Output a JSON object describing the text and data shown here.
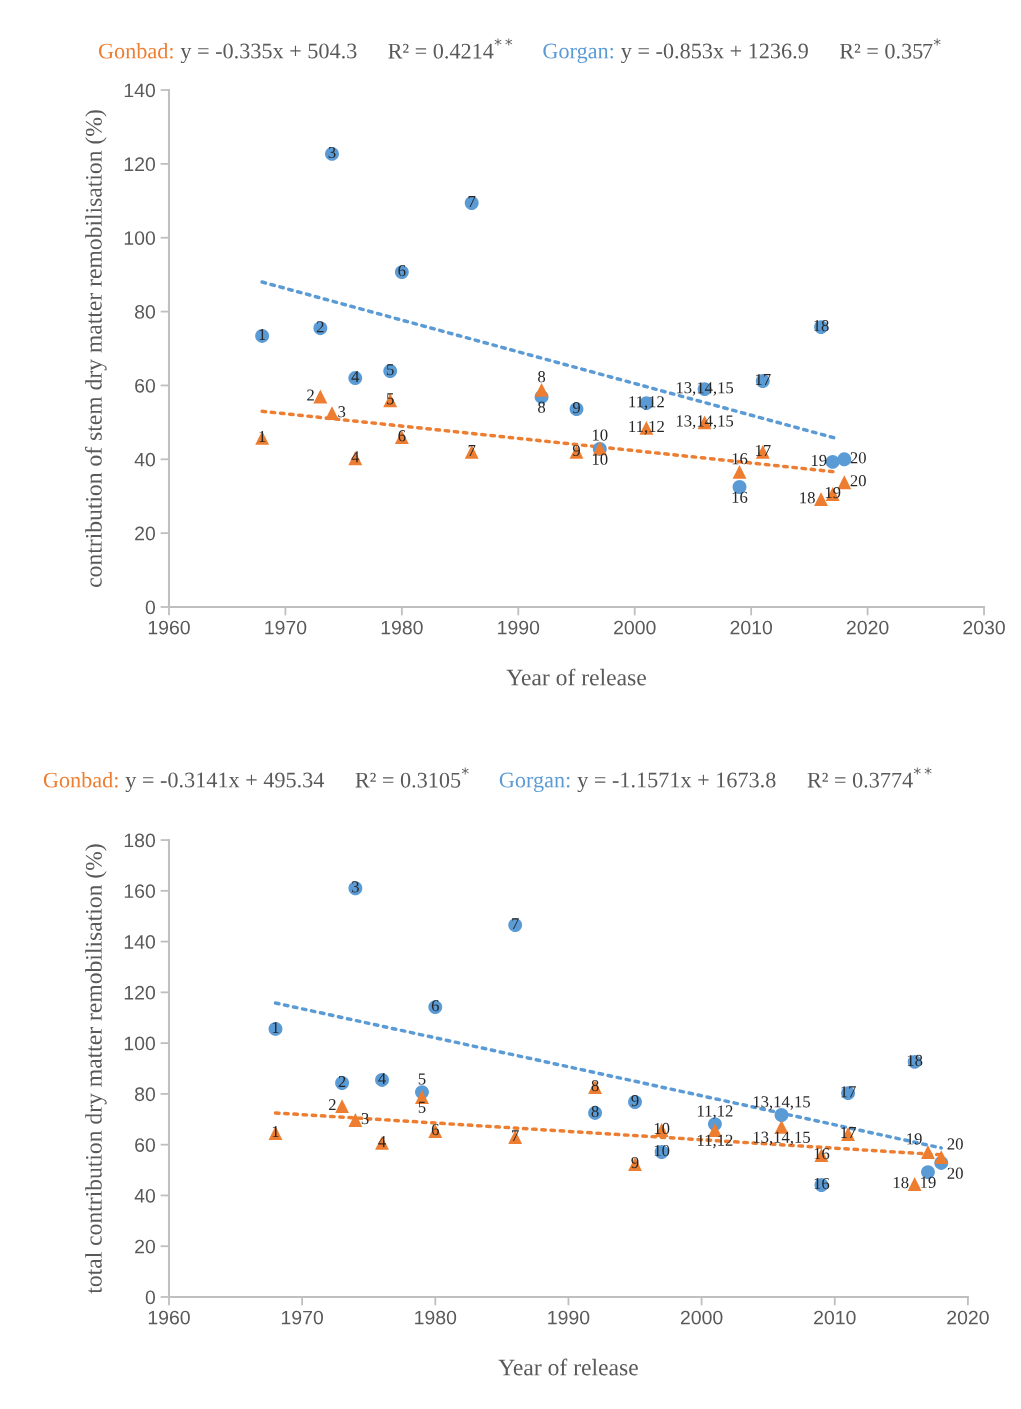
{
  "chart_data": [
    {
      "type": "scatter",
      "xlabel": "Year of release",
      "ylabel": "contribution of stem dry matter remobilisation (%)",
      "annotations": [
        "y = -0.335x + 504.3",
        "R² = 0.4214$^{**}$",
        "y = -0.853x + 1236.9",
        "R² = 0.357$^{*}$",
        {
          "text": "1",
          "x": 1968,
          "y": 45.8
        },
        {
          "text": "2",
          "x": 1973,
          "y": 57
        },
        {
          "text": "3",
          "x": 1974,
          "y": 52.5
        },
        {
          "text": "4",
          "x": 1976,
          "y": 40.3
        },
        {
          "text": "5",
          "x": 1979,
          "y": 56
        },
        {
          "text": "6",
          "x": 1980,
          "y": 46
        },
        {
          "text": "7",
          "x": 1986,
          "y": 42
        },
        {
          "text": "8",
          "x": 1992,
          "y": 58.8
        },
        {
          "text": "9",
          "x": 1995,
          "y": 42
        },
        {
          "text": "10",
          "x": 1997,
          "y": 43
        },
        {
          "text": "11,12",
          "x": 2001,
          "y": 48.5
        },
        {
          "text": "13,14,15",
          "x": 2006,
          "y": 50
        },
        {
          "text": "16",
          "x": 2009,
          "y": 36.6
        },
        {
          "text": "17",
          "x": 2011,
          "y": 42
        },
        {
          "text": "18",
          "x": 2016,
          "y": 29.2
        },
        {
          "text": "19",
          "x": 2017,
          "y": 30.6
        },
        {
          "text": "20",
          "x": 2018,
          "y": 33.8
        },
        {
          "text": "1",
          "x": 1968,
          "y": 73.4
        },
        {
          "text": "2",
          "x": 1973,
          "y": 75.5
        },
        {
          "text": "3",
          "x": 1974,
          "y": 122.7
        },
        {
          "text": "4",
          "x": 1976,
          "y": 62
        },
        {
          "text": "5",
          "x": 1979,
          "y": 63.9
        },
        {
          "text": "6",
          "x": 1980,
          "y": 90.7
        },
        {
          "text": "7",
          "x": 1986,
          "y": 109.4
        },
        {
          "text": "8",
          "x": 1992,
          "y": 56.9
        },
        {
          "text": "9",
          "x": 1995,
          "y": 53.6
        },
        {
          "text": "10",
          "x": 1997,
          "y": 42.8
        },
        {
          "text": "11,12",
          "x": 2001,
          "y": 55.2
        },
        {
          "text": "13,14,15",
          "x": 2006,
          "y": 59
        },
        {
          "text": "16",
          "x": 2009,
          "y": 32.5
        },
        {
          "text": "17",
          "x": 2011,
          "y": 61.2
        },
        {
          "text": "18",
          "x": 2016,
          "y": 75.8
        },
        {
          "text": "19",
          "x": 2017,
          "y": 39.3
        },
        {
          "text": "20",
          "x": 2018,
          "y": 40
        }
      ],
      "xlim": [
        1960,
        2030
      ],
      "xticks": [
        1960,
        1970,
        1980,
        1990,
        2000,
        2010,
        2020,
        2030
      ],
      "ylim": [
        0,
        140
      ],
      "yticks": [
        0,
        20,
        40,
        60,
        80,
        100,
        120,
        140
      ],
      "grid": false,
      "legend": false,
      "series": [
        {
          "name": "Gonbad:",
          "color": "#ed7d31",
          "marker": "triangle",
          "x": [
            1968,
            1973,
            1974,
            1976,
            1979,
            1980,
            1986,
            1992,
            1995,
            1997,
            2001,
            2006,
            2009,
            2011,
            2016,
            2017,
            2018
          ],
          "values": [
            45.8,
            57,
            52.5,
            40.3,
            56,
            46,
            42,
            58.8,
            42,
            43,
            48.5,
            50,
            36.6,
            42,
            29.2,
            30.6,
            33.8
          ]
        },
        {
          "name": "Gorgan:",
          "color": "#5b9bd5",
          "marker": "circle",
          "x": [
            1968,
            1973,
            1974,
            1976,
            1979,
            1980,
            1986,
            1992,
            1995,
            1997,
            2001,
            2006,
            2009,
            2011,
            2016,
            2017,
            2018
          ],
          "values": [
            73.4,
            75.5,
            122.7,
            62,
            63.9,
            90.7,
            109.4,
            56.9,
            53.6,
            42.8,
            55.2,
            59,
            32.5,
            61.2,
            75.8,
            39.3,
            40
          ]
        },
        {
          "type": "line",
          "color": "#ed7d31",
          "line_style": "dotted",
          "x": [
            1968,
            2017.5
          ],
          "values": [
            53,
            36.5
          ]
        },
        {
          "type": "line",
          "color": "#5b9bd5",
          "line_style": "dotted",
          "x": [
            1968,
            2017.5
          ],
          "values": [
            88,
            45.5
          ]
        }
      ]
    },
    {
      "type": "scatter",
      "xlabel": "Year of release",
      "ylabel": "total contribution dry matter remobilisation (%)",
      "annotations": [
        "y = -0.3141x + 495.34",
        "R² = 0.3105$^{*}$",
        "y = -1.1571x + 1673.8",
        "R² = 0.3774$^{**}$",
        {
          "text": "1",
          "x": 1968,
          "y": 64.6
        },
        {
          "text": "2",
          "x": 1973,
          "y": 75.2
        },
        {
          "text": "3",
          "x": 1974,
          "y": 69.7
        },
        {
          "text": "4",
          "x": 1976,
          "y": 60.7
        },
        {
          "text": "5",
          "x": 1979,
          "y": 78.8
        },
        {
          "text": "6",
          "x": 1980,
          "y": 65.4
        },
        {
          "text": "7",
          "x": 1986,
          "y": 63
        },
        {
          "text": "8",
          "x": 1992,
          "y": 82.7
        },
        {
          "text": "9",
          "x": 1995,
          "y": 52.4
        },
        {
          "text": "10",
          "x": 1997,
          "y": 65.8
        },
        {
          "text": "11,12",
          "x": 2001,
          "y": 65.8
        },
        {
          "text": "13,14,15",
          "x": 2006,
          "y": 67
        },
        {
          "text": "16",
          "x": 2009,
          "y": 55.9
        },
        {
          "text": "17",
          "x": 2011,
          "y": 64.2
        },
        {
          "text": "18",
          "x": 2016,
          "y": 44.5
        },
        {
          "text": "19",
          "x": 2017,
          "y": 57.1
        },
        {
          "text": "20",
          "x": 2018,
          "y": 55.1
        },
        {
          "text": "1",
          "x": 1968,
          "y": 105.6
        },
        {
          "text": "2",
          "x": 1973,
          "y": 84.3
        },
        {
          "text": "3",
          "x": 1974,
          "y": 161
        },
        {
          "text": "4",
          "x": 1976,
          "y": 85.5
        },
        {
          "text": "5",
          "x": 1979,
          "y": 80.7
        },
        {
          "text": "6",
          "x": 1980,
          "y": 114.2
        },
        {
          "text": "7",
          "x": 1986,
          "y": 146.5
        },
        {
          "text": "8",
          "x": 1992,
          "y": 72.5
        },
        {
          "text": "9",
          "x": 1995,
          "y": 76.8
        },
        {
          "text": "10",
          "x": 1997,
          "y": 57.1
        },
        {
          "text": "11,12",
          "x": 2001,
          "y": 68.1
        },
        {
          "text": "13,14,15",
          "x": 2006,
          "y": 71.7
        },
        {
          "text": "16",
          "x": 2009,
          "y": 44.1
        },
        {
          "text": "17",
          "x": 2011,
          "y": 80.3
        },
        {
          "text": "18",
          "x": 2016,
          "y": 92.6
        },
        {
          "text": "19",
          "x": 2017,
          "y": 49.2
        },
        {
          "text": "20",
          "x": 2018,
          "y": 52.8
        }
      ],
      "xlim": [
        1960,
        2020
      ],
      "xticks": [
        1960,
        1970,
        1980,
        1990,
        2000,
        2010,
        2020
      ],
      "ylim": [
        0,
        180
      ],
      "yticks": [
        0,
        20,
        40,
        60,
        80,
        100,
        120,
        140,
        160,
        180
      ],
      "grid": false,
      "legend": false,
      "series": [
        {
          "name": "Gonbad:",
          "color": "#ed7d31",
          "marker": "triangle",
          "x": [
            1968,
            1973,
            1974,
            1976,
            1979,
            1980,
            1986,
            1992,
            1995,
            1997,
            2001,
            2006,
            2009,
            2011,
            2016,
            2017,
            2018
          ],
          "values": [
            64.6,
            75.2,
            69.7,
            60.7,
            78.8,
            65.4,
            63,
            82.7,
            52.4,
            65.8,
            65.8,
            67,
            55.9,
            64.2,
            44.5,
            57.1,
            55.1
          ]
        },
        {
          "name": "Gorgan:",
          "color": "#5b9bd5",
          "marker": "circle",
          "x": [
            1968,
            1973,
            1974,
            1976,
            1979,
            1980,
            1986,
            1992,
            1995,
            1997,
            2001,
            2006,
            2009,
            2011,
            2016,
            2017,
            2018
          ],
          "values": [
            105.6,
            84.3,
            161,
            85.5,
            80.7,
            114.2,
            146.5,
            72.5,
            76.8,
            57.1,
            68.1,
            71.7,
            44.1,
            80.3,
            92.6,
            49.2,
            52.8
          ]
        },
        {
          "type": "line",
          "color": "#ed7d31",
          "line_style": "dotted",
          "x": [
            1968,
            2018
          ],
          "values": [
            72.5,
            56
          ]
        },
        {
          "type": "line",
          "color": "#5b9bd5",
          "line_style": "dotted",
          "x": [
            1968,
            2018
          ],
          "values": [
            115.8,
            58.7
          ]
        }
      ]
    }
  ]
}
